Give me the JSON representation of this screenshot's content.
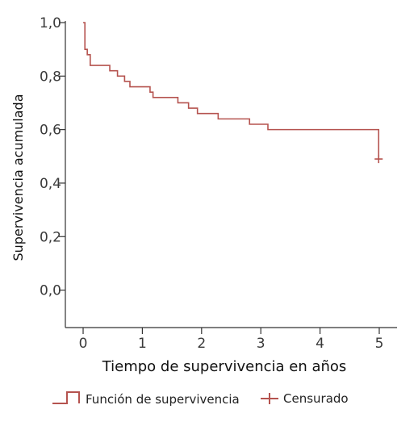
{
  "chart_data": {
    "type": "line",
    "title": "",
    "xlabel": "Tiempo de supervivencia en años",
    "ylabel": "Supervivencia acumulada",
    "xlim": [
      -0.3,
      5.3
    ],
    "ylim": [
      -0.14,
      1.0
    ],
    "x_ticks": [
      0,
      1,
      2,
      3,
      4,
      5
    ],
    "x_tick_labels": [
      "0",
      "1",
      "2",
      "3",
      "4",
      "5"
    ],
    "y_ticks": [
      0.0,
      0.2,
      0.4,
      0.6,
      0.8,
      1.0
    ],
    "y_tick_labels": [
      "0,0",
      "0,2",
      "0,4",
      "0,6",
      "0,8",
      "1,0"
    ],
    "grid": false,
    "legend_position": "bottom",
    "series": [
      {
        "name": "Función de supervivencia",
        "color": "#b5534f",
        "step": true,
        "x": [
          0,
          0.03,
          0.07,
          0.12,
          0.45,
          0.58,
          0.7,
          0.79,
          1.13,
          1.18,
          1.6,
          1.78,
          1.93,
          2.28,
          2.81,
          3.12,
          4.99
        ],
        "y": [
          1.0,
          0.9,
          0.88,
          0.84,
          0.82,
          0.8,
          0.78,
          0.76,
          0.74,
          0.72,
          0.7,
          0.68,
          0.66,
          0.64,
          0.62,
          0.6,
          0.49
        ]
      }
    ],
    "censored": {
      "name": "Censurado",
      "color": "#b5534f",
      "x": [
        4.99
      ],
      "y": [
        0.49
      ]
    }
  }
}
